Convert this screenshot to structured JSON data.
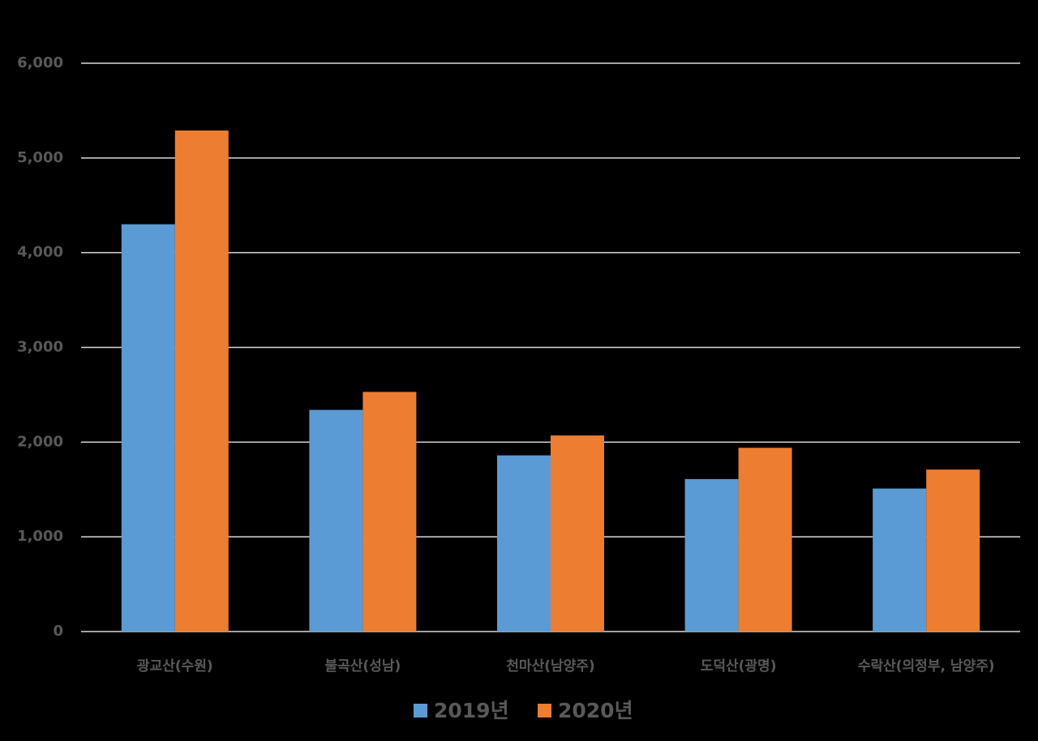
{
  "chart_data": {
    "type": "bar",
    "categories": [
      "광교산(수원)",
      "불곡산(성남)",
      "천마산(남양주)",
      "도덕산(광명)",
      "수락산(의정부, 남양주)"
    ],
    "series": [
      {
        "name": "2019년",
        "color": "#5b9bd5",
        "values": [
          4300,
          2340,
          1860,
          1610,
          1510
        ]
      },
      {
        "name": "2020년",
        "color": "#ed7d31",
        "values": [
          5290,
          2530,
          2070,
          1940,
          1710
        ]
      }
    ],
    "ylim": [
      0,
      6000
    ],
    "yticks": [
      0,
      {
        "value": 1000,
        "label": "1,000"
      },
      {
        "value": 2000,
        "label": "2,000"
      },
      {
        "value": 3000,
        "label": "3,000"
      },
      {
        "value": 4000,
        "label": "4,000"
      },
      {
        "value": 5000,
        "label": "5,000"
      },
      {
        "value": 6000,
        "label": "6,000"
      }
    ],
    "grid": true,
    "legend": "bottom"
  }
}
